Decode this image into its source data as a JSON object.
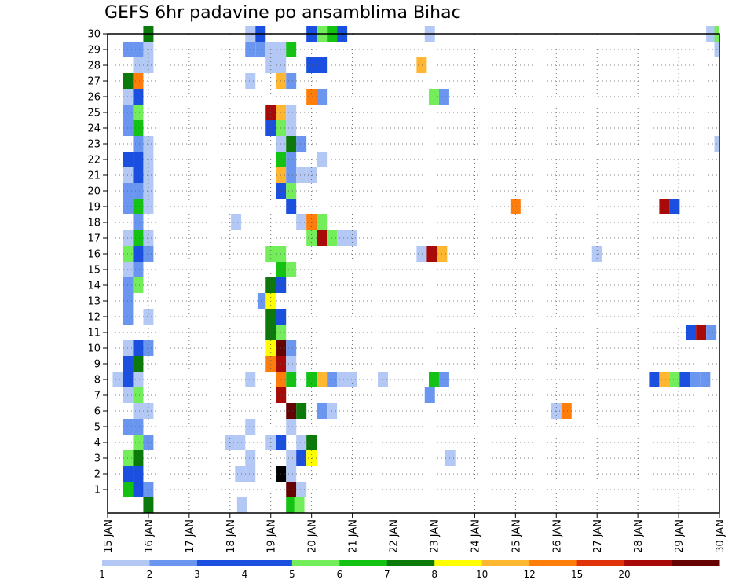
{
  "chart_data": {
    "type": "heatmap",
    "title": "GEFS 6hr padavine po ansamblima Bihac",
    "xlabel": "",
    "ylabel": "",
    "x_ticks": [
      {
        "day": 15,
        "label": "15 JAN"
      },
      {
        "day": 16,
        "label": "16 JAN"
      },
      {
        "day": 17,
        "label": "17 JAN"
      },
      {
        "day": 18,
        "label": "18 JAN"
      },
      {
        "day": 19,
        "label": "19 JAN"
      },
      {
        "day": 20,
        "label": "20 JAN"
      },
      {
        "day": 21,
        "label": "21 JAN"
      },
      {
        "day": 22,
        "label": "22 JAN"
      },
      {
        "day": 23,
        "label": "23 JAN"
      },
      {
        "day": 24,
        "label": "24 JAN"
      },
      {
        "day": 25,
        "label": "25 JAN"
      },
      {
        "day": 26,
        "label": "26 JAN"
      },
      {
        "day": 27,
        "label": "27 JAN"
      },
      {
        "day": 28,
        "label": "28 JAN"
      },
      {
        "day": 29,
        "label": "29 JAN"
      },
      {
        "day": 30,
        "label": "30 JAN"
      }
    ],
    "xlim": [
      15,
      30
    ],
    "ylim": [
      0,
      30
    ],
    "y_ticks": [
      "1",
      "2",
      "3",
      "4",
      "5",
      "6",
      "7",
      "8",
      "9",
      "10",
      "11",
      "12",
      "13",
      "14",
      "15",
      "16",
      "17",
      "18",
      "19",
      "20",
      "21",
      "22",
      "23",
      "24",
      "25",
      "26",
      "27",
      "28",
      "29",
      "30"
    ],
    "grid": true,
    "colorbar": {
      "labels": [
        "1",
        "2",
        "3",
        "4",
        "5",
        "6",
        "7",
        "8",
        "10",
        "12",
        "15",
        "20"
      ],
      "colors": [
        "#b4c8f5",
        "#6a96f0",
        "#1a4fe0",
        "#1a4fe0",
        "#73ee5a",
        "#13c213",
        "#0b7a0b",
        "#ffff00",
        "#ffb732",
        "#ff7d0a",
        "#e0330a",
        "#a80a0a",
        "#650303"
      ]
    },
    "cell_rows": [
      {
        "m": 0,
        "cells": [
          [
            16.0,
            7
          ],
          [
            18.3,
            1
          ],
          [
            19.5,
            6
          ],
          [
            19.7,
            5
          ]
        ]
      },
      {
        "m": 1,
        "cells": [
          [
            15.5,
            6
          ],
          [
            15.75,
            3
          ],
          [
            16.0,
            2
          ],
          [
            19.5,
            13
          ],
          [
            19.75,
            1
          ]
        ]
      },
      {
        "m": 2,
        "cells": [
          [
            15.5,
            3
          ],
          [
            15.75,
            3
          ],
          [
            18.25,
            1
          ],
          [
            18.5,
            1
          ],
          [
            19.25,
            14
          ],
          [
            19.5,
            1
          ]
        ]
      },
      {
        "m": 3,
        "cells": [
          [
            15.5,
            5
          ],
          [
            15.75,
            7
          ],
          [
            18.5,
            1
          ],
          [
            19.5,
            1
          ],
          [
            19.75,
            3
          ],
          [
            20.0,
            8
          ],
          [
            23.4,
            1
          ]
        ]
      },
      {
        "m": 4,
        "cells": [
          [
            15.75,
            5
          ],
          [
            16.0,
            2
          ],
          [
            18.0,
            1
          ],
          [
            18.25,
            1
          ],
          [
            19.0,
            1
          ],
          [
            19.25,
            3
          ],
          [
            19.75,
            1
          ],
          [
            20.0,
            7
          ]
        ]
      },
      {
        "m": 5,
        "cells": [
          [
            15.5,
            2
          ],
          [
            15.75,
            2
          ],
          [
            18.5,
            1
          ],
          [
            19.5,
            1
          ]
        ]
      },
      {
        "m": 6,
        "cells": [
          [
            15.75,
            1
          ],
          [
            16.0,
            1
          ],
          [
            19.5,
            13
          ],
          [
            19.75,
            7
          ],
          [
            20.25,
            2
          ],
          [
            20.5,
            1
          ],
          [
            26.0,
            1
          ],
          [
            26.25,
            10
          ]
        ]
      },
      {
        "m": 7,
        "cells": [
          [
            15.5,
            1
          ],
          [
            15.75,
            5
          ],
          [
            19.25,
            12
          ],
          [
            22.9,
            2
          ]
        ]
      },
      {
        "m": 8,
        "cells": [
          [
            15.25,
            1
          ],
          [
            15.5,
            3
          ],
          [
            15.75,
            1
          ],
          [
            18.5,
            1
          ],
          [
            19.25,
            10
          ],
          [
            19.5,
            6
          ],
          [
            20.0,
            6
          ],
          [
            20.25,
            9
          ],
          [
            20.5,
            2
          ],
          [
            20.75,
            1
          ],
          [
            21.0,
            1
          ],
          [
            21.75,
            1
          ],
          [
            23.0,
            6
          ],
          [
            23.25,
            2
          ],
          [
            28.4,
            3
          ],
          [
            28.65,
            9
          ],
          [
            28.9,
            5
          ],
          [
            29.15,
            3
          ],
          [
            29.4,
            2
          ],
          [
            29.65,
            2
          ]
        ]
      },
      {
        "m": 9,
        "cells": [
          [
            15.5,
            3
          ],
          [
            15.75,
            7
          ],
          [
            19.0,
            10
          ],
          [
            19.25,
            12
          ],
          [
            19.5,
            1
          ]
        ]
      },
      {
        "m": 10,
        "cells": [
          [
            15.5,
            1
          ],
          [
            15.75,
            3
          ],
          [
            16.0,
            2
          ],
          [
            19.0,
            8
          ],
          [
            19.25,
            13
          ],
          [
            19.5,
            2
          ]
        ]
      },
      {
        "m": 11,
        "cells": [
          [
            19.0,
            7
          ],
          [
            19.25,
            5
          ],
          [
            29.3,
            3
          ],
          [
            29.55,
            12
          ],
          [
            29.8,
            2
          ]
        ]
      },
      {
        "m": 12,
        "cells": [
          [
            15.5,
            2
          ],
          [
            16.0,
            1
          ],
          [
            19.0,
            7
          ],
          [
            19.25,
            3
          ]
        ]
      },
      {
        "m": 13,
        "cells": [
          [
            15.5,
            2
          ],
          [
            18.8,
            2
          ],
          [
            19.0,
            8
          ]
        ]
      },
      {
        "m": 14,
        "cells": [
          [
            15.5,
            2
          ],
          [
            15.75,
            5
          ],
          [
            19.0,
            7
          ],
          [
            19.25,
            3
          ]
        ]
      },
      {
        "m": 15,
        "cells": [
          [
            15.5,
            1
          ],
          [
            15.75,
            2
          ],
          [
            19.25,
            6
          ],
          [
            19.5,
            5
          ]
        ]
      },
      {
        "m": 16,
        "cells": [
          [
            15.5,
            5
          ],
          [
            15.75,
            3
          ],
          [
            16.0,
            2
          ],
          [
            19.0,
            5
          ],
          [
            19.25,
            5
          ],
          [
            22.7,
            1
          ],
          [
            22.95,
            12
          ],
          [
            23.2,
            9
          ],
          [
            27.0,
            1
          ]
        ]
      },
      {
        "m": 17,
        "cells": [
          [
            15.5,
            1
          ],
          [
            15.75,
            6
          ],
          [
            16.0,
            1
          ],
          [
            20.0,
            5
          ],
          [
            20.25,
            12
          ],
          [
            20.5,
            5
          ],
          [
            20.75,
            1
          ],
          [
            21.0,
            1
          ]
        ]
      },
      {
        "m": 18,
        "cells": [
          [
            15.75,
            2
          ],
          [
            18.15,
            1
          ],
          [
            19.75,
            1
          ],
          [
            20.0,
            10
          ],
          [
            20.25,
            5
          ]
        ]
      },
      {
        "m": 19,
        "cells": [
          [
            15.5,
            2
          ],
          [
            15.75,
            6
          ],
          [
            16.0,
            1
          ],
          [
            19.5,
            3
          ],
          [
            25.0,
            10
          ],
          [
            28.65,
            12
          ],
          [
            28.9,
            3
          ]
        ]
      },
      {
        "m": 20,
        "cells": [
          [
            15.5,
            2
          ],
          [
            15.75,
            2
          ],
          [
            16.0,
            1
          ],
          [
            19.25,
            3
          ],
          [
            19.5,
            5
          ]
        ]
      },
      {
        "m": 21,
        "cells": [
          [
            15.5,
            1
          ],
          [
            15.75,
            3
          ],
          [
            16.0,
            1
          ],
          [
            19.25,
            9
          ],
          [
            19.5,
            2
          ],
          [
            19.75,
            1
          ],
          [
            20.0,
            1
          ]
        ]
      },
      {
        "m": 22,
        "cells": [
          [
            15.5,
            3
          ],
          [
            15.75,
            3
          ],
          [
            16.0,
            1
          ],
          [
            19.25,
            6
          ],
          [
            19.5,
            2
          ],
          [
            20.25,
            1
          ]
        ]
      },
      {
        "m": 23,
        "cells": [
          [
            15.75,
            2
          ],
          [
            16.0,
            1
          ],
          [
            19.25,
            1
          ],
          [
            19.5,
            7
          ],
          [
            19.75,
            2
          ],
          [
            30.0,
            1
          ]
        ]
      },
      {
        "m": 24,
        "cells": [
          [
            15.5,
            2
          ],
          [
            15.75,
            6
          ],
          [
            19.0,
            3
          ],
          [
            19.25,
            5
          ],
          [
            19.5,
            1
          ]
        ]
      },
      {
        "m": 25,
        "cells": [
          [
            15.5,
            2
          ],
          [
            15.75,
            5
          ],
          [
            19.0,
            12
          ],
          [
            19.25,
            9
          ],
          [
            19.5,
            1
          ]
        ]
      },
      {
        "m": 26,
        "cells": [
          [
            15.5,
            1
          ],
          [
            15.75,
            3
          ],
          [
            20.0,
            10
          ],
          [
            20.25,
            2
          ],
          [
            23.0,
            5
          ],
          [
            23.25,
            2
          ]
        ]
      },
      {
        "m": 27,
        "cells": [
          [
            15.5,
            7
          ],
          [
            15.75,
            10
          ],
          [
            18.5,
            1
          ],
          [
            19.25,
            9
          ],
          [
            19.5,
            2
          ]
        ]
      },
      {
        "m": 28,
        "cells": [
          [
            15.75,
            1
          ],
          [
            16.0,
            1
          ],
          [
            19.0,
            1
          ],
          [
            19.25,
            1
          ],
          [
            20.0,
            3
          ],
          [
            20.25,
            3
          ],
          [
            22.7,
            9
          ]
        ]
      },
      {
        "m": 29,
        "cells": [
          [
            15.5,
            2
          ],
          [
            15.75,
            2
          ],
          [
            16.0,
            1
          ],
          [
            18.5,
            2
          ],
          [
            18.75,
            2
          ],
          [
            19.0,
            1
          ],
          [
            19.25,
            1
          ],
          [
            19.5,
            6
          ],
          [
            30.0,
            1
          ]
        ]
      },
      {
        "m": 30,
        "cells": [
          [
            16.0,
            7
          ],
          [
            18.5,
            1
          ],
          [
            18.75,
            3
          ],
          [
            20.0,
            3
          ],
          [
            20.25,
            5
          ],
          [
            20.5,
            6
          ],
          [
            20.75,
            3
          ],
          [
            22.9,
            1
          ],
          [
            29.8,
            1
          ],
          [
            30.0,
            5
          ]
        ]
      }
    ]
  }
}
